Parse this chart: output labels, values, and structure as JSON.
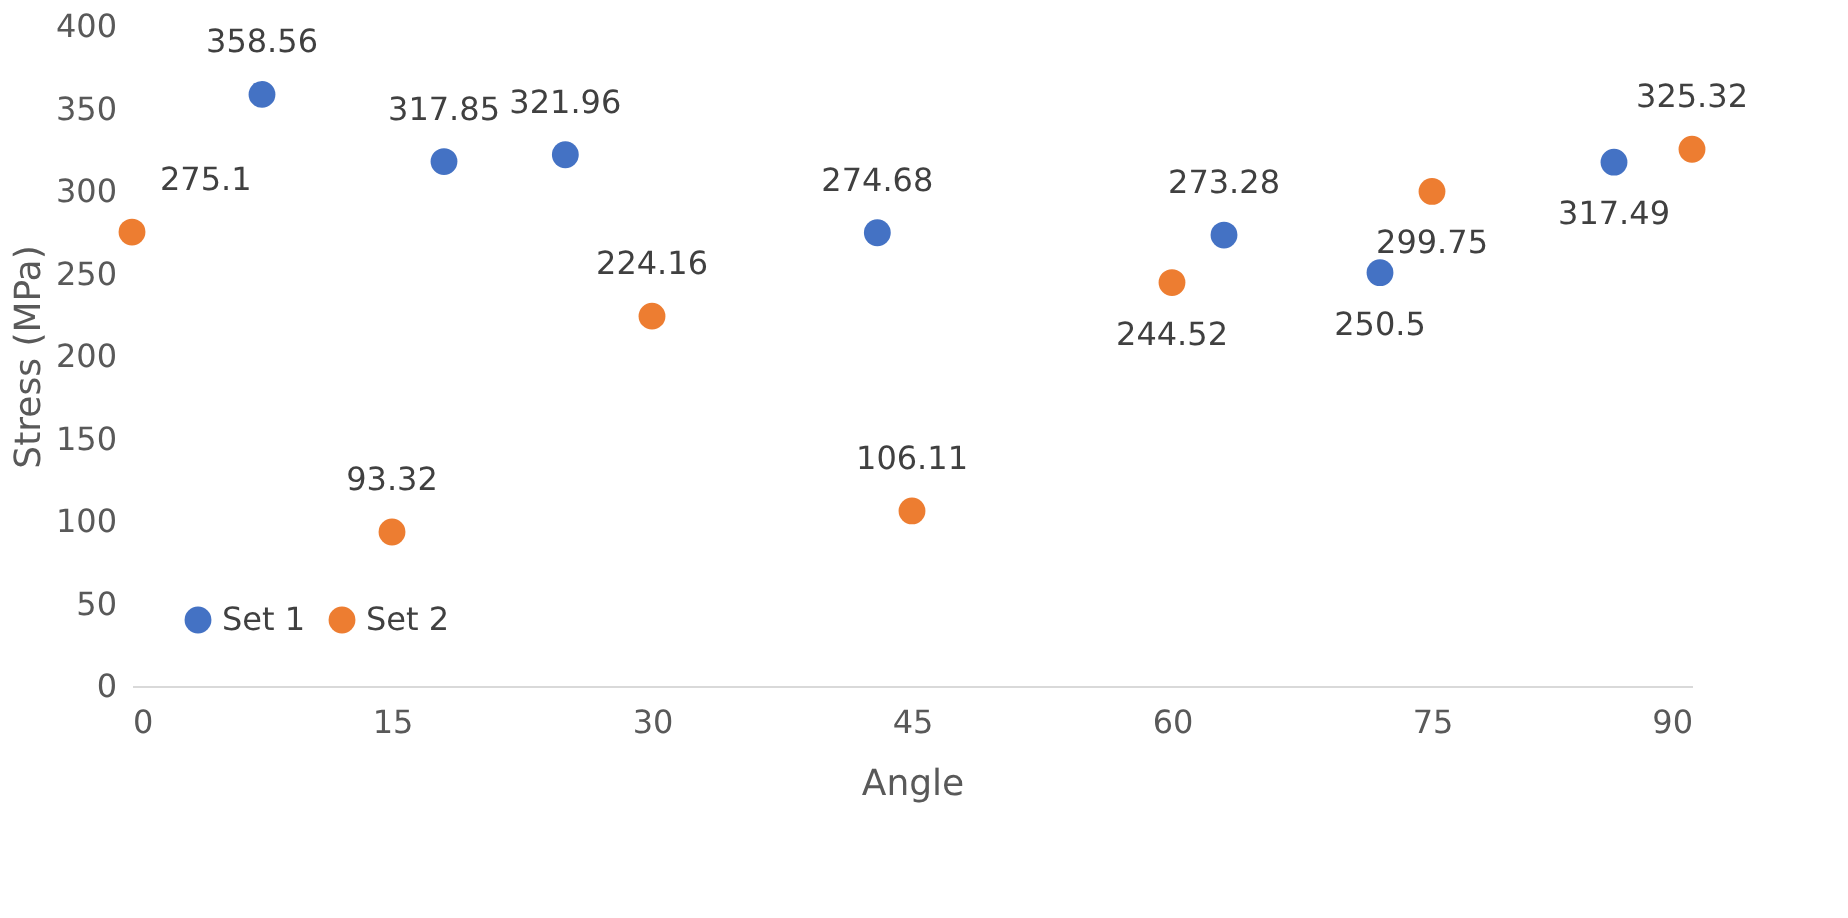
{
  "chart_data": {
    "type": "scatter",
    "xlabel": "Angle",
    "ylabel": "Stress (MPa)",
    "xlim": [
      0,
      90
    ],
    "xticks": [
      0,
      15,
      30,
      45,
      60,
      75,
      90
    ],
    "ylim": [
      0,
      400
    ],
    "yticks": [
      0,
      50,
      100,
      150,
      200,
      250,
      300,
      350,
      400
    ],
    "series": [
      {
        "name": "Set 1",
        "color": "#4472c4",
        "x": [
          7.5,
          18,
          25,
          43,
          63,
          72,
          85.5
        ],
        "values": [
          358.56,
          317.85,
          321.96,
          274.68,
          273.28,
          250.5,
          317.49
        ]
      },
      {
        "name": "Set 2",
        "color": "#ed7d31",
        "x": [
          0,
          15,
          30,
          45,
          60,
          75,
          90
        ],
        "values": [
          275.1,
          93.32,
          224.16,
          106.11,
          244.52,
          299.75,
          325.32
        ]
      }
    ],
    "data_labels": true,
    "marker": "circle",
    "grid": false,
    "legend": "bottom left"
  }
}
